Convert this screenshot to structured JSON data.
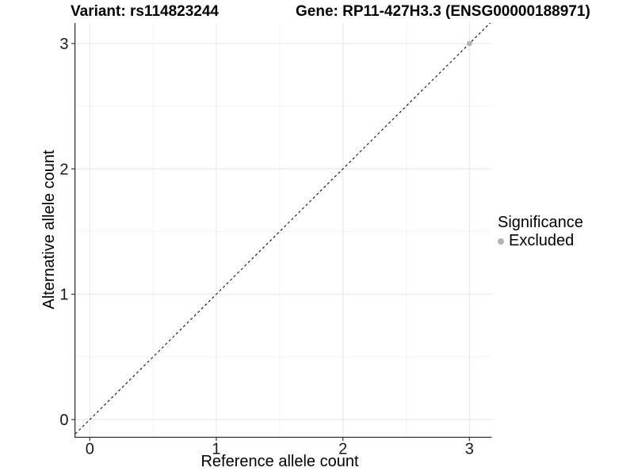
{
  "titles": {
    "left": "Variant: rs114823244",
    "right": "Gene: RP11-427H3.3 (ENSG00000188971)"
  },
  "axes": {
    "x_label": "Reference allele count",
    "y_label": "Alternative allele count"
  },
  "legend": {
    "title": "Significance",
    "items": [
      {
        "label": "Excluded",
        "color": "#b3b3b3"
      }
    ]
  },
  "chart_data": {
    "type": "scatter",
    "title_left": "Variant: rs114823244",
    "title_right": "Gene: RP11-427H3.3 (ENSG00000188971)",
    "xlabel": "Reference allele count",
    "ylabel": "Alternative allele count",
    "xticks": [
      0,
      1,
      2,
      3
    ],
    "yticks": [
      0,
      1,
      2,
      3
    ],
    "xlim": [
      -0.15,
      3.2
    ],
    "ylim": [
      -0.15,
      3.2
    ],
    "grid": {
      "major": true,
      "minor": true
    },
    "reference_line": {
      "type": "identity",
      "style": "dashed",
      "color": "#1a1a1a",
      "from": [
        -0.2,
        -0.2
      ],
      "to": [
        3.3,
        3.3
      ]
    },
    "series": [
      {
        "name": "Excluded",
        "color": "#b3b3b3",
        "points": [
          {
            "x": 3,
            "y": 3
          }
        ]
      }
    ],
    "legend_title": "Significance",
    "legend_position": "right",
    "style": {
      "grid_major_color": "#e6e6e6",
      "grid_minor_color": "#f2f2f2",
      "axis_line_color": "#333333",
      "tick_label_color": "#1a1a1a"
    }
  }
}
